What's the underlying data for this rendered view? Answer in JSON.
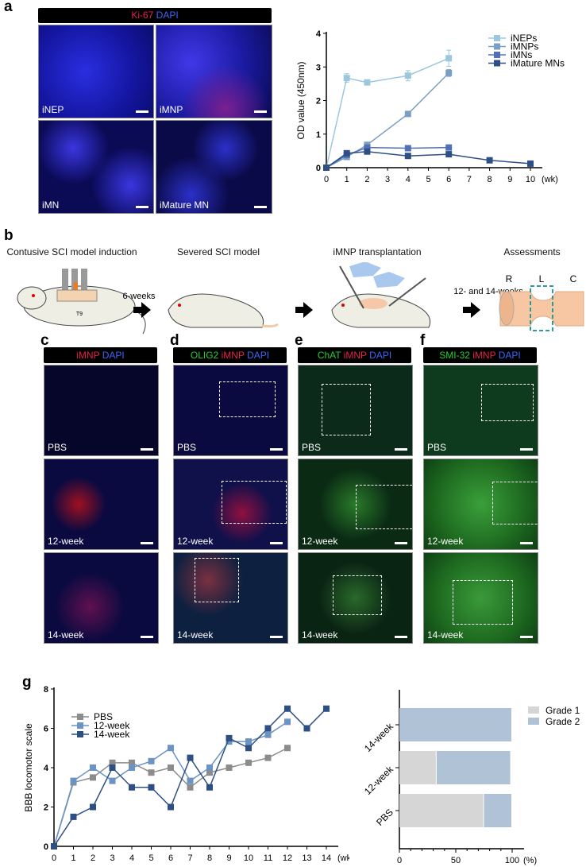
{
  "panel_a": {
    "letter": "a",
    "stain": {
      "marker": "Ki-67",
      "dapi": "DAPI"
    },
    "images": [
      {
        "label": "iNEP"
      },
      {
        "label": "iMNP"
      },
      {
        "label": "iMN"
      },
      {
        "label": "iMature MN"
      }
    ]
  },
  "panel_b": {
    "letter": "b",
    "steps": [
      {
        "title": "Contusive SCI model induction",
        "vertebra": "T9"
      },
      {
        "title": "Severed SCI model"
      },
      {
        "title": "iMNP transplantation"
      },
      {
        "title": "Assessments",
        "axis_labels": [
          "R",
          "L",
          "C"
        ]
      }
    ],
    "intervals": [
      "6-weeks",
      "12- and 14-weeks"
    ]
  },
  "panels_cf": [
    {
      "letter": "c",
      "stain": [
        {
          "t": "iMNP",
          "c": "red"
        },
        {
          "t": "DAPI",
          "c": "blue"
        }
      ]
    },
    {
      "letter": "d",
      "stain": [
        {
          "t": "OLIG2",
          "c": "green"
        },
        {
          "t": "iMNP",
          "c": "red"
        },
        {
          "t": "DAPI",
          "c": "blue"
        }
      ]
    },
    {
      "letter": "e",
      "stain": [
        {
          "t": "ChAT",
          "c": "green"
        },
        {
          "t": "iMNP",
          "c": "red"
        },
        {
          "t": "DAPI",
          "c": "blue"
        }
      ]
    },
    {
      "letter": "f",
      "stain": [
        {
          "t": "SMI-32",
          "c": "green"
        },
        {
          "t": "iMNP",
          "c": "red"
        },
        {
          "t": "DAPI",
          "c": "blue"
        }
      ]
    }
  ],
  "row_labels": [
    "PBS",
    "12-week",
    "14-week"
  ],
  "panel_g": {
    "letter": "g"
  },
  "chart_data": [
    {
      "type": "line",
      "title": "",
      "xlabel": "(wk)",
      "ylabel": "OD value (450nm)",
      "xlim": [
        0,
        10
      ],
      "ylim": [
        0,
        4
      ],
      "xticks": [
        0,
        1,
        2,
        3,
        4,
        5,
        6,
        7,
        8,
        9,
        10
      ],
      "yticks": [
        0,
        1,
        2,
        3,
        4
      ],
      "legend": "top-right",
      "grid": false,
      "series": [
        {
          "name": "iNEPs",
          "color": "#9cc7dc",
          "x": [
            0,
            1,
            2,
            4,
            6
          ],
          "y": [
            0,
            2.67,
            2.54,
            2.74,
            3.26
          ],
          "err": [
            0,
            0.13,
            0.05,
            0.15,
            0.24
          ]
        },
        {
          "name": "iMNPs",
          "color": "#7b9fc4",
          "x": [
            0,
            1,
            2,
            4,
            6
          ],
          "y": [
            0,
            0.32,
            0.68,
            1.6,
            2.82
          ],
          "err": [
            0,
            0.03,
            0.05,
            0.04,
            0.1
          ]
        },
        {
          "name": "iMNs",
          "color": "#5270b8",
          "x": [
            0,
            1,
            2,
            4,
            6
          ],
          "y": [
            0,
            0.38,
            0.6,
            0.58,
            0.6
          ],
          "err": [
            0,
            0.03,
            0.03,
            0.03,
            0.03
          ]
        },
        {
          "name": "iMature MNs",
          "color": "#2e4f84",
          "x": [
            0,
            1,
            2,
            4,
            6,
            8,
            10
          ],
          "y": [
            0,
            0.43,
            0.48,
            0.35,
            0.4,
            0.22,
            0.12
          ],
          "err": [
            0,
            0.03,
            0.03,
            0.03,
            0.03,
            0.02,
            0.02
          ]
        }
      ]
    },
    {
      "type": "line",
      "title": "",
      "xlabel": "(wk)",
      "ylabel": "BBB locomotor scale",
      "xlim": [
        0,
        14
      ],
      "ylim": [
        0,
        8
      ],
      "xticks": [
        0,
        1,
        2,
        3,
        4,
        5,
        6,
        7,
        8,
        9,
        10,
        11,
        12,
        13,
        14
      ],
      "yticks": [
        0,
        2,
        4,
        6,
        8
      ],
      "legend": "top-left",
      "grid": false,
      "series": [
        {
          "name": "PBS",
          "color": "#8c8c8c",
          "x": [
            0,
            1,
            2,
            3,
            4,
            5,
            6,
            7,
            8,
            9,
            10,
            11,
            12
          ],
          "y": [
            0,
            3.25,
            3.5,
            4.25,
            4.25,
            3.75,
            4,
            3,
            3.75,
            4,
            4.25,
            4.5,
            5
          ]
        },
        {
          "name": "12-week",
          "color": "#6b93c4",
          "x": [
            0,
            1,
            2,
            3,
            4,
            5,
            6,
            7,
            8,
            9,
            10,
            11,
            12
          ],
          "y": [
            0,
            3.33,
            4,
            3.33,
            4,
            4.33,
            5,
            3.33,
            4,
            5.33,
            5.33,
            5.67,
            6.33
          ]
        },
        {
          "name": "14-week",
          "color": "#2e4f84",
          "x": [
            0,
            1,
            2,
            3,
            4,
            5,
            6,
            7,
            8,
            9,
            10,
            11,
            12,
            13,
            14
          ],
          "y": [
            0,
            1.5,
            2,
            4,
            3,
            3,
            2,
            4.5,
            3,
            5.5,
            5,
            6,
            7,
            6,
            7
          ]
        }
      ]
    },
    {
      "type": "bar",
      "orientation": "horizontal",
      "stacked": true,
      "title": "",
      "xlabel": "(%)",
      "xlim": [
        0,
        100
      ],
      "xticks": [
        0,
        50,
        100
      ],
      "categories": [
        "14-week",
        "12-week",
        "PBS"
      ],
      "legend": "top-right",
      "series": [
        {
          "name": "Grade 1",
          "color": "#d6d6d6",
          "values": [
            0,
            33,
            75
          ]
        },
        {
          "name": "Grade 2",
          "color": "#b0c2d6",
          "values": [
            100,
            66,
            25
          ]
        }
      ]
    }
  ]
}
